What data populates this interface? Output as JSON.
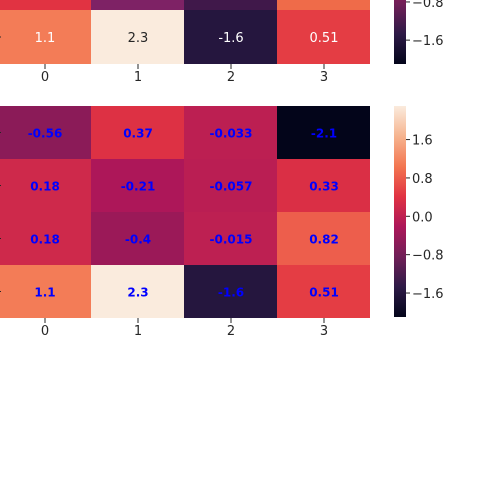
{
  "chart_data": [
    {
      "type": "heatmap",
      "rows": [
        [
          1.1,
          2.3,
          -1.6,
          0.51
        ]
      ],
      "cell_labels": [
        [
          "1.1",
          "2.3",
          "-1.6",
          "0.51"
        ]
      ],
      "x_ticks": [
        "0",
        "1",
        "2",
        "3"
      ],
      "y_ticks": [],
      "colorbar_ticks": [
        "−0.8",
        "−1.6"
      ],
      "colorbar_range": [
        -2.1,
        2.3
      ],
      "partial_top_row_colors": [
        "#e13342",
        "#7e2265",
        "#40184a",
        "#ef6b49"
      ],
      "annotation_color": "#ffffff"
    },
    {
      "type": "heatmap",
      "rows": [
        [
          -0.56,
          0.37,
          -0.033,
          -2.1
        ],
        [
          0.18,
          -0.21,
          -0.057,
          0.33
        ],
        [
          0.18,
          -0.4,
          -0.015,
          0.82
        ],
        [
          1.1,
          2.3,
          -1.6,
          0.51
        ]
      ],
      "cell_labels": [
        [
          "-0.56",
          "0.37",
          "-0.033",
          "-2.1"
        ],
        [
          "0.18",
          "-0.21",
          "-0.057",
          "0.33"
        ],
        [
          "0.18",
          "-0.4",
          "-0.015",
          "0.82"
        ],
        [
          "1.1",
          "2.3",
          "-1.6",
          "0.51"
        ]
      ],
      "x_ticks": [
        "0",
        "1",
        "2",
        "3"
      ],
      "y_ticks": [],
      "colorbar_ticks": [
        "1.6",
        "0.8",
        "0.0",
        "−0.8",
        "−1.6"
      ],
      "colorbar_range": [
        -2.1,
        2.3
      ],
      "annotation_color": "#0000ff"
    }
  ],
  "colors": {
    "cmap_stops": [
      "#03051a",
      "#2e1a47",
      "#701f57",
      "#ad1759",
      "#e13342",
      "#f37651",
      "#f6b48f",
      "#faebdd"
    ]
  }
}
